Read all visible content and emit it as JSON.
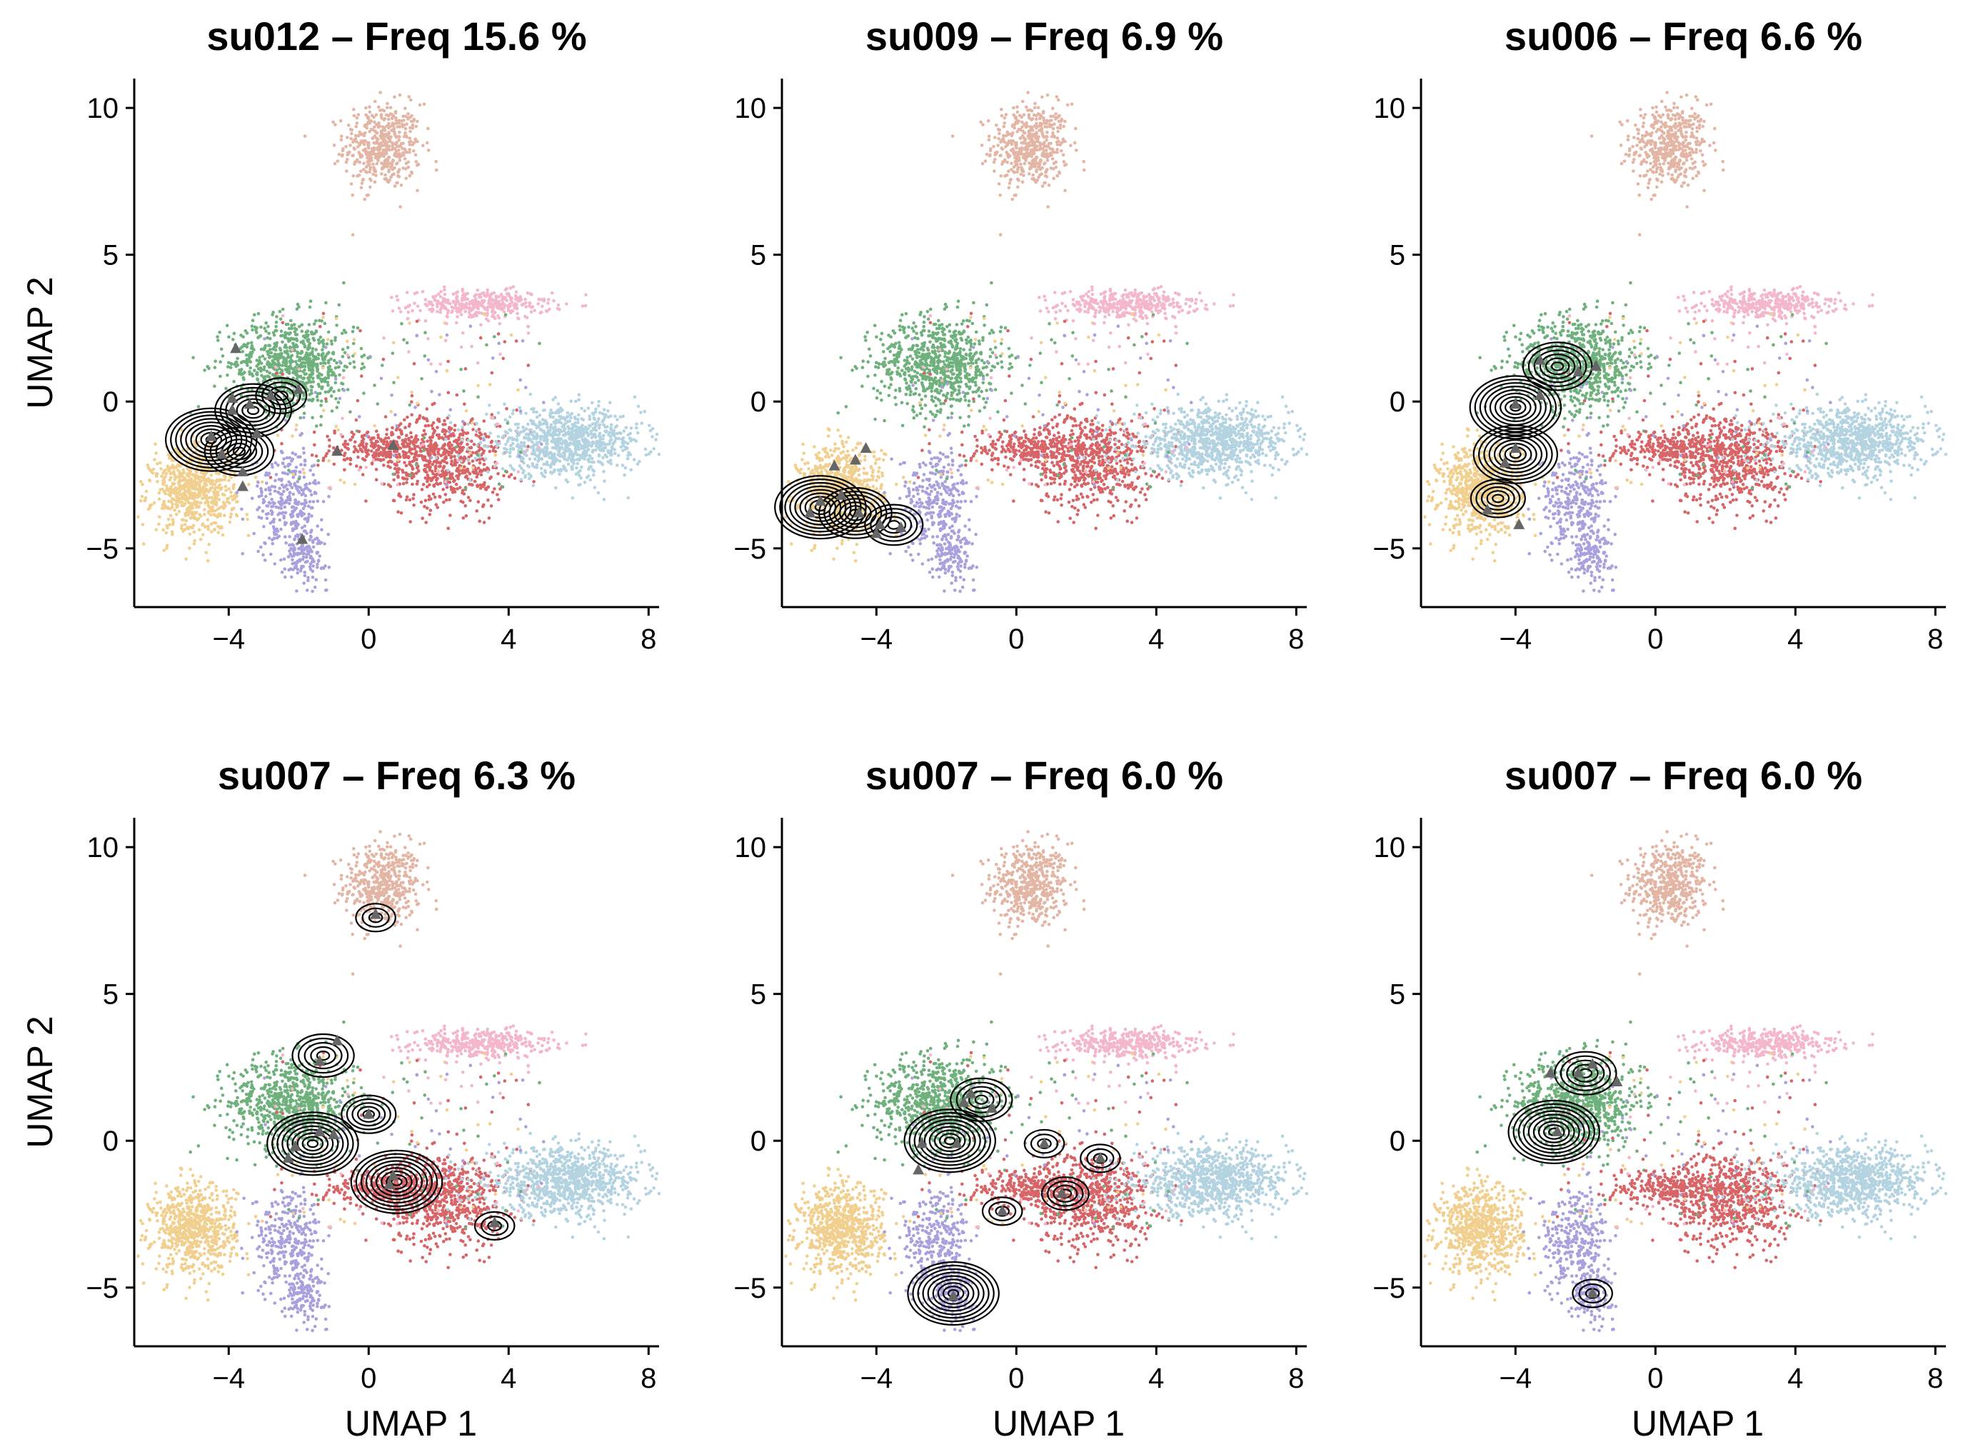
{
  "figure": {
    "cluster_colors": {
      "top": "#e3b5a4",
      "pink": "#f4b6cb",
      "green": "#6fb17c",
      "red": "#d76466",
      "lightblue": "#b4d3e1",
      "tan": "#f1cf8e",
      "lavender": "#a9a1dd"
    },
    "contour_color": "#000000",
    "marker_color": "#666666",
    "marker_shape": "triangle"
  },
  "chart_data": [
    {
      "type": "scatter",
      "title": "su012 – Freq 15.6 %",
      "xlabel": "",
      "ylabel": "UMAP 2",
      "xlim": [
        -6.7,
        8.3
      ],
      "ylim": [
        -7,
        11
      ],
      "xticks": [
        -4,
        0,
        4,
        8
      ],
      "yticks": [
        -5,
        0,
        5,
        10
      ],
      "xtick_labels": [
        "−4",
        "0",
        "4",
        "8"
      ],
      "ytick_labels": [
        "−5",
        "0",
        "5",
        "10"
      ],
      "markers": [
        [
          -3.8,
          1.8
        ],
        [
          -4.5,
          -1.2
        ],
        [
          -3.9,
          -0.3
        ],
        [
          -3.4,
          -0.1
        ],
        [
          -3.2,
          -1.1
        ],
        [
          -3.6,
          -2.4
        ],
        [
          -3.6,
          -2.9
        ],
        [
          -2.0,
          0.4
        ],
        [
          -1.9,
          -4.7
        ],
        [
          -0.9,
          -1.7
        ],
        [
          0.7,
          -1.5
        ],
        [
          -3.9,
          0.1
        ],
        [
          -2.8,
          0.2
        ],
        [
          -4.2,
          -1.8
        ]
      ],
      "density_peaks": [
        [
          -4.5,
          -1.3,
          1.0
        ],
        [
          -3.3,
          -0.3,
          0.8
        ],
        [
          -3.7,
          -1.7,
          0.7
        ],
        [
          -2.5,
          0.2,
          0.45
        ]
      ]
    },
    {
      "type": "scatter",
      "title": "su009 – Freq 6.9 %",
      "xlabel": "",
      "ylabel": "",
      "xlim": [
        -6.7,
        8.3
      ],
      "ylim": [
        -7,
        11
      ],
      "xticks": [
        -4,
        0,
        4,
        8
      ],
      "yticks": [
        -5,
        0,
        5,
        10
      ],
      "xtick_labels": [
        "−4",
        "0",
        "4",
        "8"
      ],
      "ytick_labels": [
        "−5",
        "0",
        "5",
        "10"
      ],
      "markers": [
        [
          -5.2,
          -2.2
        ],
        [
          -4.6,
          -2.0
        ],
        [
          -4.3,
          -1.6
        ],
        [
          -5.6,
          -3.4
        ],
        [
          -5.0,
          -3.2
        ],
        [
          -4.5,
          -3.8
        ],
        [
          -3.9,
          -4.2
        ],
        [
          -3.3,
          -4.3
        ],
        [
          -4.0,
          -4.5
        ],
        [
          -5.9,
          -3.8
        ]
      ],
      "density_peaks": [
        [
          -5.6,
          -3.6,
          1.0
        ],
        [
          -4.6,
          -3.8,
          0.75
        ],
        [
          -3.5,
          -4.2,
          0.55
        ]
      ]
    },
    {
      "type": "scatter",
      "title": "su006 – Freq 6.6 %",
      "xlabel": "",
      "ylabel": "",
      "xlim": [
        -6.7,
        8.3
      ],
      "ylim": [
        -7,
        11
      ],
      "xticks": [
        -4,
        0,
        4,
        8
      ],
      "yticks": [
        -5,
        0,
        5,
        10
      ],
      "xtick_labels": [
        "−4",
        "0",
        "4",
        "8"
      ],
      "ytick_labels": [
        "−5",
        "0",
        "5",
        "10"
      ],
      "markers": [
        [
          -3.3,
          1.4
        ],
        [
          -2.2,
          1.0
        ],
        [
          -3.3,
          0.2
        ],
        [
          -4.0,
          -0.1
        ],
        [
          -4.0,
          -1.6
        ],
        [
          -4.3,
          -2.1
        ],
        [
          -4.8,
          -3.7
        ],
        [
          -3.9,
          -4.2
        ],
        [
          -1.7,
          1.2
        ]
      ],
      "density_peaks": [
        [
          -4.0,
          -0.2,
          1.0
        ],
        [
          -4.0,
          -1.8,
          0.9
        ],
        [
          -2.8,
          1.2,
          0.7
        ],
        [
          -4.5,
          -3.3,
          0.5
        ]
      ]
    },
    {
      "type": "scatter",
      "title": "su007 – Freq 6.3 %",
      "xlabel": "UMAP 1",
      "ylabel": "UMAP 2",
      "xlim": [
        -6.7,
        8.3
      ],
      "ylim": [
        -7,
        11
      ],
      "xticks": [
        -4,
        0,
        4,
        8
      ],
      "yticks": [
        -5,
        0,
        5,
        10
      ],
      "xtick_labels": [
        "−4",
        "0",
        "4",
        "8"
      ],
      "ytick_labels": [
        "−5",
        "0",
        "5",
        "10"
      ],
      "markers": [
        [
          0.2,
          7.7
        ],
        [
          -1.4,
          2.7
        ],
        [
          -0.9,
          3.4
        ],
        [
          -1.4,
          0.3
        ],
        [
          -2.1,
          -0.2
        ],
        [
          -2.3,
          -0.6
        ],
        [
          0.0,
          0.9
        ],
        [
          0.6,
          -1.5
        ],
        [
          0.7,
          -1.2
        ],
        [
          3.6,
          -2.8
        ],
        [
          -1.0,
          0.2
        ]
      ],
      "density_peaks": [
        [
          -1.6,
          -0.1,
          1.0
        ],
        [
          -1.3,
          2.9,
          0.6
        ],
        [
          0.8,
          -1.4,
          1.0
        ],
        [
          0.0,
          0.9,
          0.5
        ],
        [
          3.6,
          -2.9,
          0.3
        ],
        [
          0.2,
          7.6,
          0.3
        ]
      ]
    },
    {
      "type": "scatter",
      "title": "su007 – Freq 6.0 %",
      "xlabel": "UMAP 1",
      "ylabel": "",
      "xlim": [
        -6.7,
        8.3
      ],
      "ylim": [
        -7,
        11
      ],
      "xticks": [
        -4,
        0,
        4,
        8
      ],
      "yticks": [
        -5,
        0,
        5,
        10
      ],
      "xtick_labels": [
        "−4",
        "0",
        "4",
        "8"
      ],
      "ytick_labels": [
        "−5",
        "0",
        "5",
        "10"
      ],
      "markers": [
        [
          -1.7,
          -0.1
        ],
        [
          -2.7,
          -0.1
        ],
        [
          -2.8,
          -1.0
        ],
        [
          -0.7,
          1.1
        ],
        [
          -1.3,
          1.6
        ],
        [
          0.8,
          -0.1
        ],
        [
          1.3,
          -1.8
        ],
        [
          2.4,
          -0.6
        ],
        [
          -0.4,
          -2.4
        ],
        [
          -1.8,
          -5.3
        ],
        [
          -1.5,
          1.3
        ]
      ],
      "density_peaks": [
        [
          -1.9,
          0.0,
          1.0
        ],
        [
          -1.0,
          1.4,
          0.6
        ],
        [
          0.8,
          -0.1,
          0.3
        ],
        [
          1.4,
          -1.8,
          0.4
        ],
        [
          2.4,
          -0.6,
          0.3
        ],
        [
          -0.4,
          -2.4,
          0.3
        ],
        [
          -1.8,
          -5.2,
          1.0
        ]
      ]
    },
    {
      "type": "scatter",
      "title": "su007 – Freq 6.0 %",
      "xlabel": "UMAP 1",
      "ylabel": "",
      "xlim": [
        -6.7,
        8.3
      ],
      "ylim": [
        -7,
        11
      ],
      "xticks": [
        -4,
        0,
        4,
        8
      ],
      "yticks": [
        -5,
        0,
        5,
        10
      ],
      "xtick_labels": [
        "−4",
        "0",
        "4",
        "8"
      ],
      "ytick_labels": [
        "−5",
        "0",
        "5",
        "10"
      ],
      "markers": [
        [
          -3.0,
          2.3
        ],
        [
          -2.2,
          2.3
        ],
        [
          -1.8,
          2.6
        ],
        [
          -1.1,
          2.0
        ],
        [
          -2.8,
          0.3
        ],
        [
          -1.8,
          -5.2
        ]
      ],
      "density_peaks": [
        [
          -2.9,
          0.3,
          1.0
        ],
        [
          -2.0,
          2.3,
          0.6
        ],
        [
          -1.8,
          -5.2,
          0.3
        ]
      ]
    }
  ]
}
